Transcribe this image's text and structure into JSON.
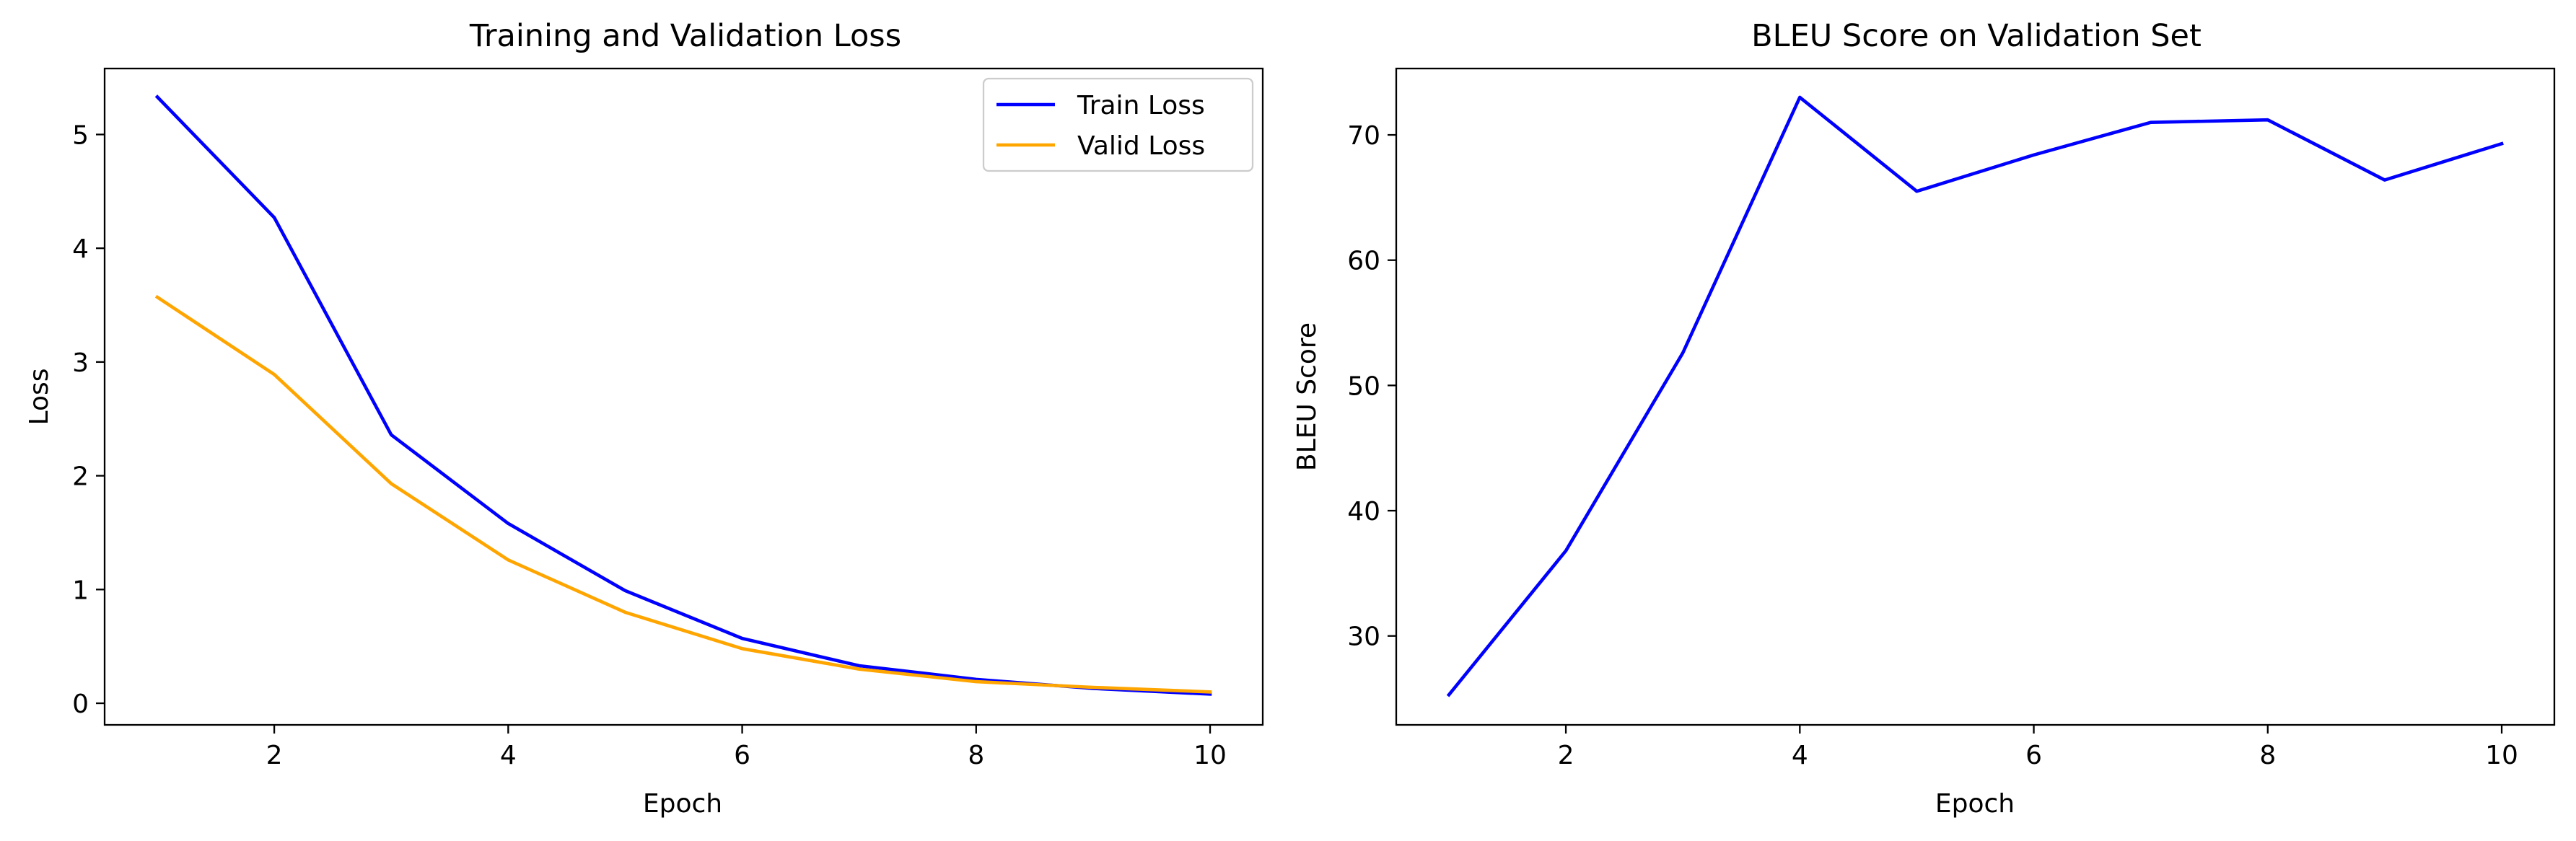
{
  "chart_data": [
    {
      "type": "line",
      "title": "Training and Validation Loss",
      "xlabel": "Epoch",
      "ylabel": "Loss",
      "x": [
        1,
        2,
        3,
        4,
        5,
        6,
        7,
        8,
        9,
        10
      ],
      "xlim": [
        0.55,
        10.45
      ],
      "ylim": [
        -0.19,
        5.58
      ],
      "xticks": [
        2,
        4,
        6,
        8,
        10
      ],
      "yticks": [
        0,
        1,
        2,
        3,
        4,
        5
      ],
      "grid": false,
      "legend": "top-right",
      "series": [
        {
          "name": "Train Loss",
          "color": "#0000ff",
          "values": [
            5.33,
            4.27,
            2.36,
            1.58,
            0.99,
            0.57,
            0.33,
            0.21,
            0.13,
            0.08
          ]
        },
        {
          "name": "Valid Loss",
          "color": "#ffa500",
          "values": [
            3.57,
            2.89,
            1.93,
            1.26,
            0.8,
            0.48,
            0.3,
            0.19,
            0.14,
            0.1
          ]
        }
      ]
    },
    {
      "type": "line",
      "title": "BLEU Score on Validation Set",
      "xlabel": "Epoch",
      "ylabel": "BLEU Score",
      "x": [
        1,
        2,
        3,
        4,
        5,
        6,
        7,
        8,
        9,
        10
      ],
      "xlim": [
        0.55,
        10.45
      ],
      "ylim": [
        22.9,
        75.3
      ],
      "xticks": [
        2,
        4,
        6,
        8,
        10
      ],
      "yticks": [
        30,
        40,
        50,
        60,
        70
      ],
      "grid": false,
      "series": [
        {
          "color": "#0000ff",
          "values": [
            25.3,
            36.8,
            52.6,
            73.0,
            65.5,
            68.4,
            71.0,
            71.2,
            66.4,
            69.3
          ]
        }
      ]
    }
  ]
}
